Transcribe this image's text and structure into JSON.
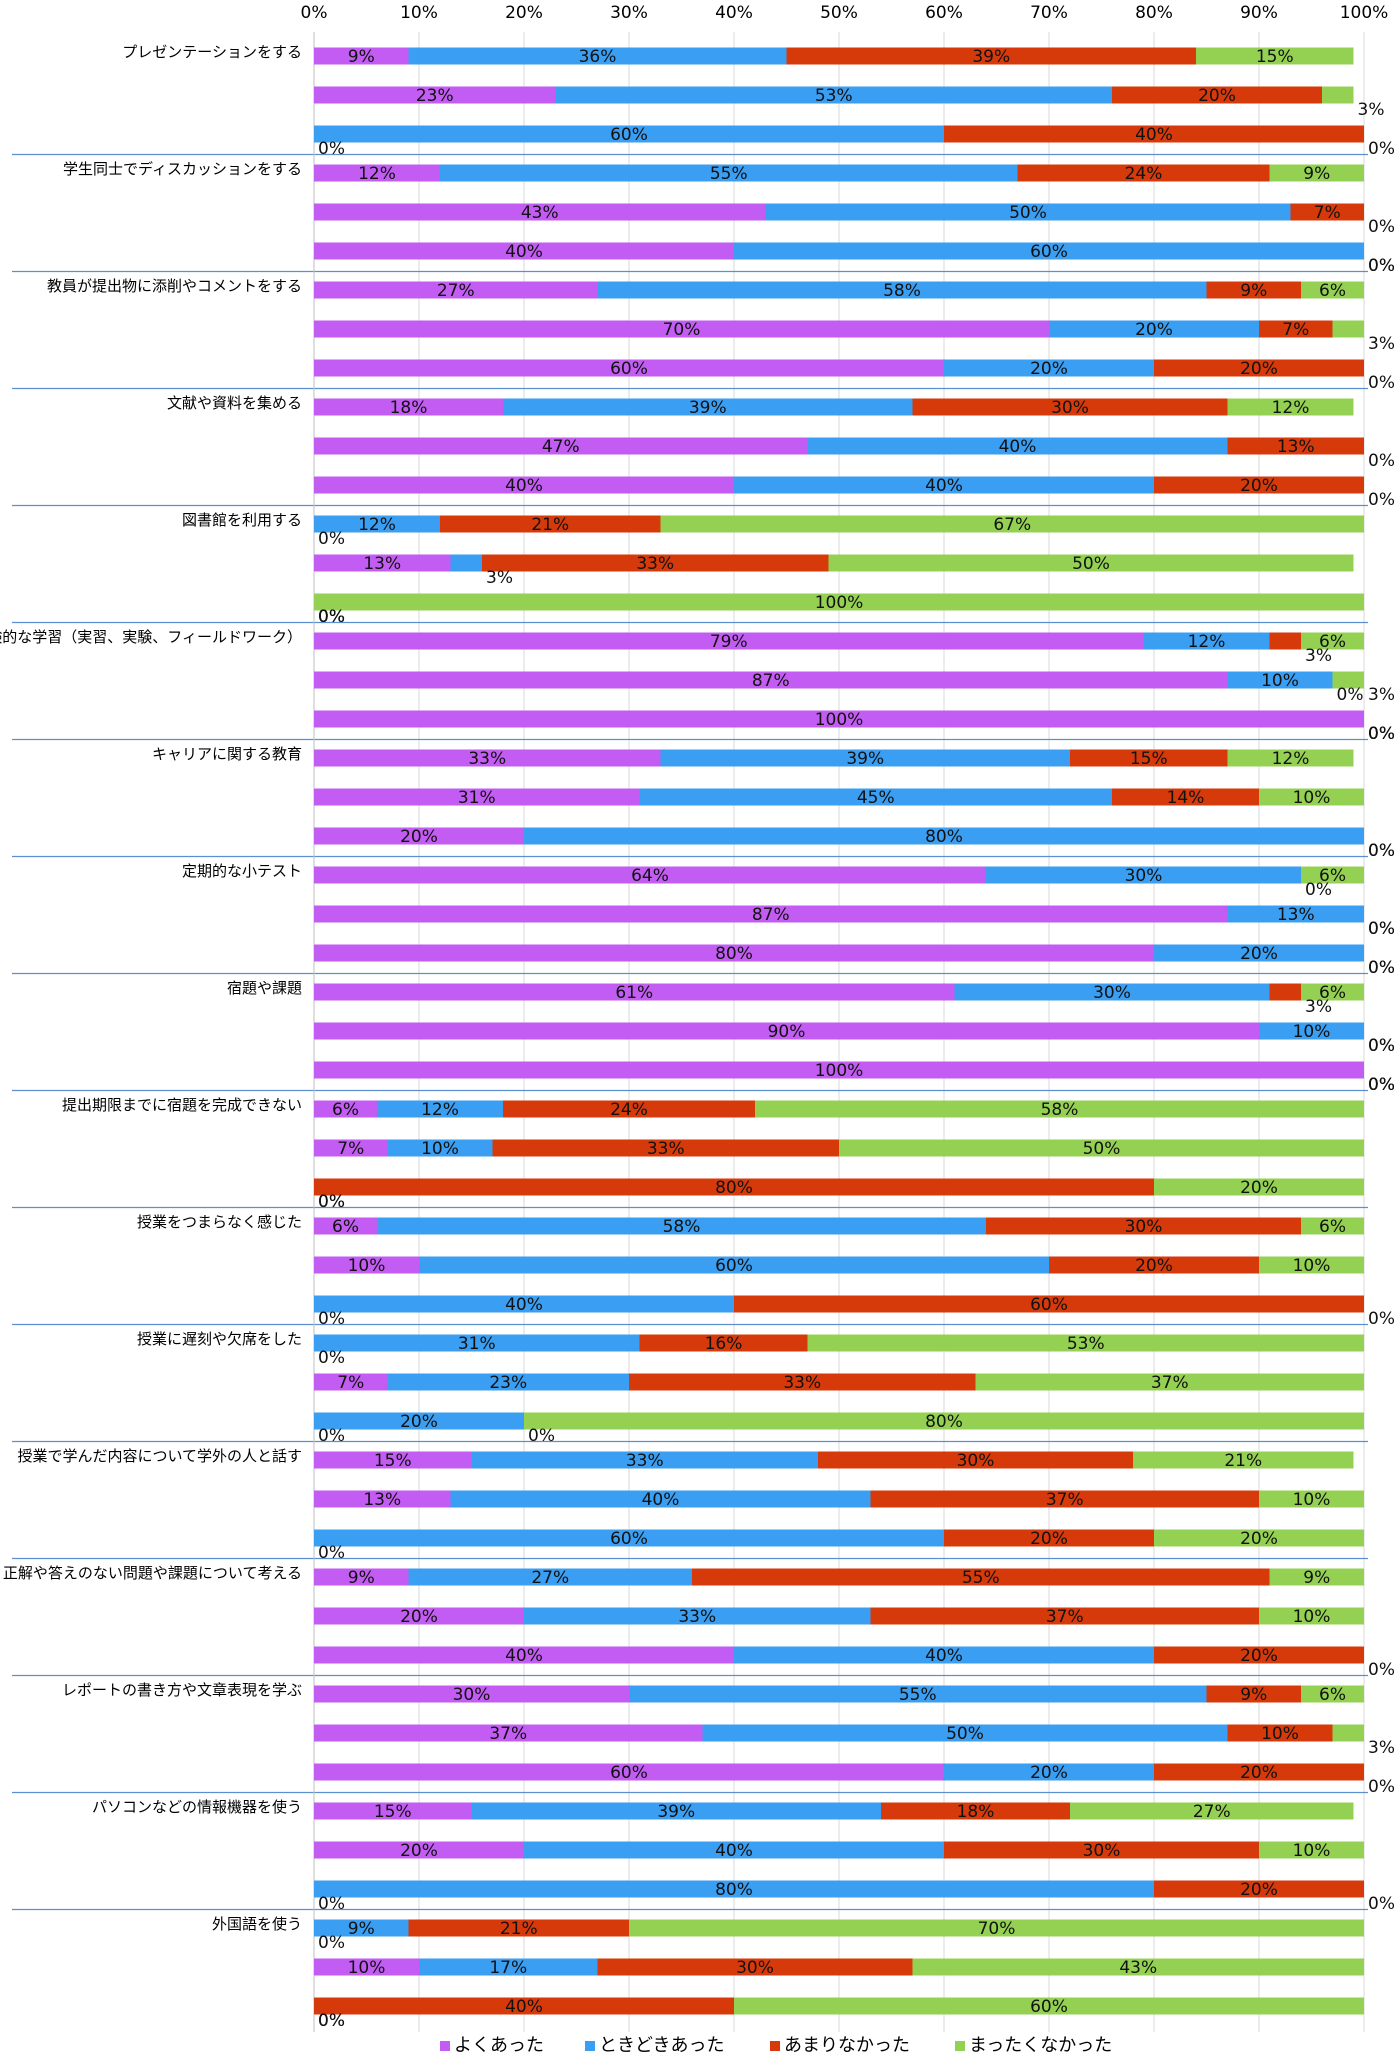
{
  "chart_data": {
    "type": "bar",
    "orientation": "horizontal",
    "stacking": "percent",
    "x_ticks": [
      "0%",
      "10%",
      "20%",
      "30%",
      "40%",
      "50%",
      "60%",
      "70%",
      "80%",
      "90%",
      "100%"
    ],
    "xlim": [
      0,
      100
    ],
    "grid": true,
    "legend_position": "bottom",
    "series_names": [
      "よくあった",
      "ときどきあった",
      "あまりなかった",
      "まったくなかった"
    ],
    "colors": [
      "#c25cf2",
      "#3a9ef2",
      "#d63a0a",
      "#94d152"
    ],
    "groups": [
      {
        "label": "プレゼンテーションをする",
        "rows": [
          [
            9,
            36,
            39,
            15
          ],
          [
            23,
            53,
            20,
            3
          ],
          [
            0,
            60,
            40,
            0
          ]
        ]
      },
      {
        "label": "学生同士でディスカッションをする",
        "rows": [
          [
            12,
            55,
            24,
            9
          ],
          [
            43,
            50,
            7,
            0
          ],
          [
            40,
            60,
            0,
            0
          ]
        ]
      },
      {
        "label": "教員が提出物に添削やコメントをする",
        "rows": [
          [
            27,
            58,
            9,
            6
          ],
          [
            70,
            20,
            7,
            3
          ],
          [
            60,
            20,
            20,
            0
          ]
        ]
      },
      {
        "label": "文献や資料を集める",
        "rows": [
          [
            18,
            39,
            30,
            12
          ],
          [
            47,
            40,
            13,
            0
          ],
          [
            40,
            40,
            20,
            0
          ]
        ]
      },
      {
        "label": "図書館を利用する",
        "rows": [
          [
            0,
            12,
            21,
            67
          ],
          [
            13,
            3,
            33,
            50
          ],
          [
            0,
            0,
            0,
            100
          ]
        ]
      },
      {
        "label": "体験的な学習（実習、実験、フィールドワーク）",
        "rows": [
          [
            79,
            12,
            3,
            6
          ],
          [
            87,
            10,
            0,
            3
          ],
          [
            100,
            0,
            0,
            0
          ]
        ]
      },
      {
        "label": "キャリアに関する教育",
        "rows": [
          [
            33,
            39,
            15,
            12
          ],
          [
            31,
            45,
            14,
            10
          ],
          [
            20,
            80,
            0,
            0
          ]
        ]
      },
      {
        "label": "定期的な小テスト",
        "rows": [
          [
            64,
            30,
            0,
            6
          ],
          [
            87,
            13,
            0,
            0
          ],
          [
            80,
            20,
            0,
            0
          ]
        ]
      },
      {
        "label": "宿題や課題",
        "rows": [
          [
            61,
            30,
            3,
            6
          ],
          [
            90,
            10,
            0,
            0
          ],
          [
            100,
            0,
            0,
            0
          ]
        ]
      },
      {
        "label": "提出期限までに宿題を完成できない",
        "rows": [
          [
            6,
            12,
            24,
            58
          ],
          [
            7,
            10,
            33,
            50
          ],
          [
            0,
            0,
            80,
            20
          ]
        ]
      },
      {
        "label": "授業をつまらなく感じた",
        "rows": [
          [
            6,
            58,
            30,
            6
          ],
          [
            10,
            60,
            20,
            10
          ],
          [
            0,
            40,
            60,
            0
          ]
        ]
      },
      {
        "label": "授業に遅刻や欠席をした",
        "rows": [
          [
            0,
            31,
            16,
            53
          ],
          [
            7,
            23,
            33,
            37
          ],
          [
            0,
            20,
            0,
            80
          ]
        ]
      },
      {
        "label": "授業で学んだ内容について学外の人と話す",
        "rows": [
          [
            15,
            33,
            30,
            21
          ],
          [
            13,
            40,
            37,
            10
          ],
          [
            0,
            60,
            20,
            20
          ]
        ]
      },
      {
        "label": "正解や答えのない問題や課題について考える",
        "rows": [
          [
            9,
            27,
            55,
            9
          ],
          [
            20,
            33,
            37,
            10
          ],
          [
            40,
            40,
            20,
            0
          ]
        ]
      },
      {
        "label": "レポートの書き方や文章表現を学ぶ",
        "rows": [
          [
            30,
            55,
            9,
            6
          ],
          [
            37,
            50,
            10,
            3
          ],
          [
            60,
            20,
            20,
            0
          ]
        ]
      },
      {
        "label": "パソコンなどの情報機器を使う",
        "rows": [
          [
            15,
            39,
            18,
            27
          ],
          [
            20,
            40,
            30,
            10
          ],
          [
            0,
            80,
            20,
            0
          ]
        ]
      },
      {
        "label": "外国語を使う",
        "rows": [
          [
            0,
            9,
            21,
            70
          ],
          [
            10,
            17,
            30,
            43
          ],
          [
            0,
            0,
            40,
            60
          ]
        ]
      }
    ]
  }
}
